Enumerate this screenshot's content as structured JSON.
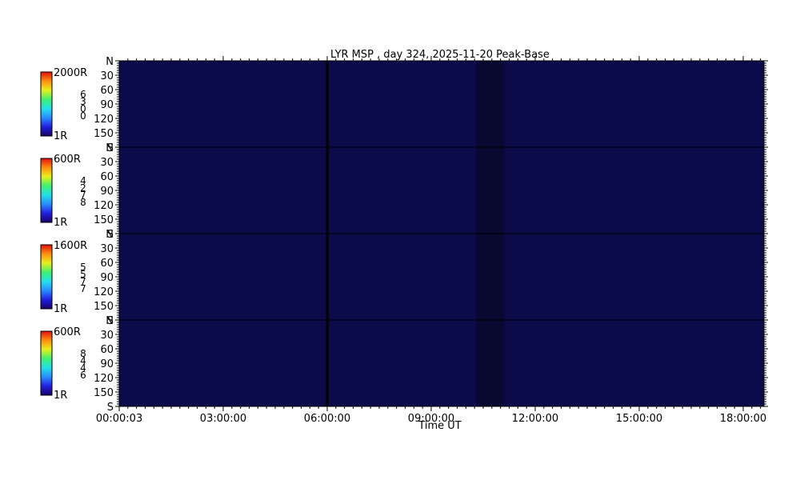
{
  "title": "LYR MSP , day 324, 2025-11-20 Peak-Base",
  "colors": {
    "panel_background": "#0b0b4a",
    "gap_fill": "#080830",
    "background": "#ffffff",
    "axis": "#000000",
    "colorbar": [
      "#1a0066",
      "#2020e0",
      "#2a8cff",
      "#22e0e8",
      "#40f070",
      "#e6f020",
      "#ff9010",
      "#e01010"
    ]
  },
  "chart_data": {
    "type": "heatmap",
    "title": "LYR MSP , day 324, 2025-11-20 Peak-Base",
    "xlabel": "Time UT",
    "x_tick_labels": [
      "00:00:03",
      "03:00:00",
      "06:00:00",
      "09:00:00",
      "12:00:00",
      "15:00:00",
      "18:00:00"
    ],
    "x_ticks_hours": [
      0.0008,
      3,
      6,
      9,
      12,
      15,
      18
    ],
    "xlim_hours": [
      0,
      18.6
    ],
    "y_tick_labels": [
      "N",
      "30",
      "60",
      "90",
      "120",
      "150",
      "S"
    ],
    "y_ticks_deg": [
      0,
      30,
      60,
      90,
      120,
      150,
      180
    ],
    "ylim_deg": [
      0,
      180
    ],
    "data_gap_hours": [
      10.3,
      11.1
    ],
    "time_marker_hours": 6.0,
    "panels": [
      {
        "channel_digits": [
          "6",
          "3",
          "0",
          "0"
        ],
        "colorbar_max": "2000R",
        "colorbar_min": "1R"
      },
      {
        "channel_digits": [
          "4",
          "2",
          "7",
          "8"
        ],
        "colorbar_max": "600R",
        "colorbar_min": "1R"
      },
      {
        "channel_digits": [
          "5",
          "5",
          "7",
          "7"
        ],
        "colorbar_max": "1600R",
        "colorbar_min": "1R"
      },
      {
        "channel_digits": [
          "8",
          "4",
          "4",
          "6"
        ],
        "colorbar_max": "600R",
        "colorbar_min": "1R"
      }
    ]
  }
}
